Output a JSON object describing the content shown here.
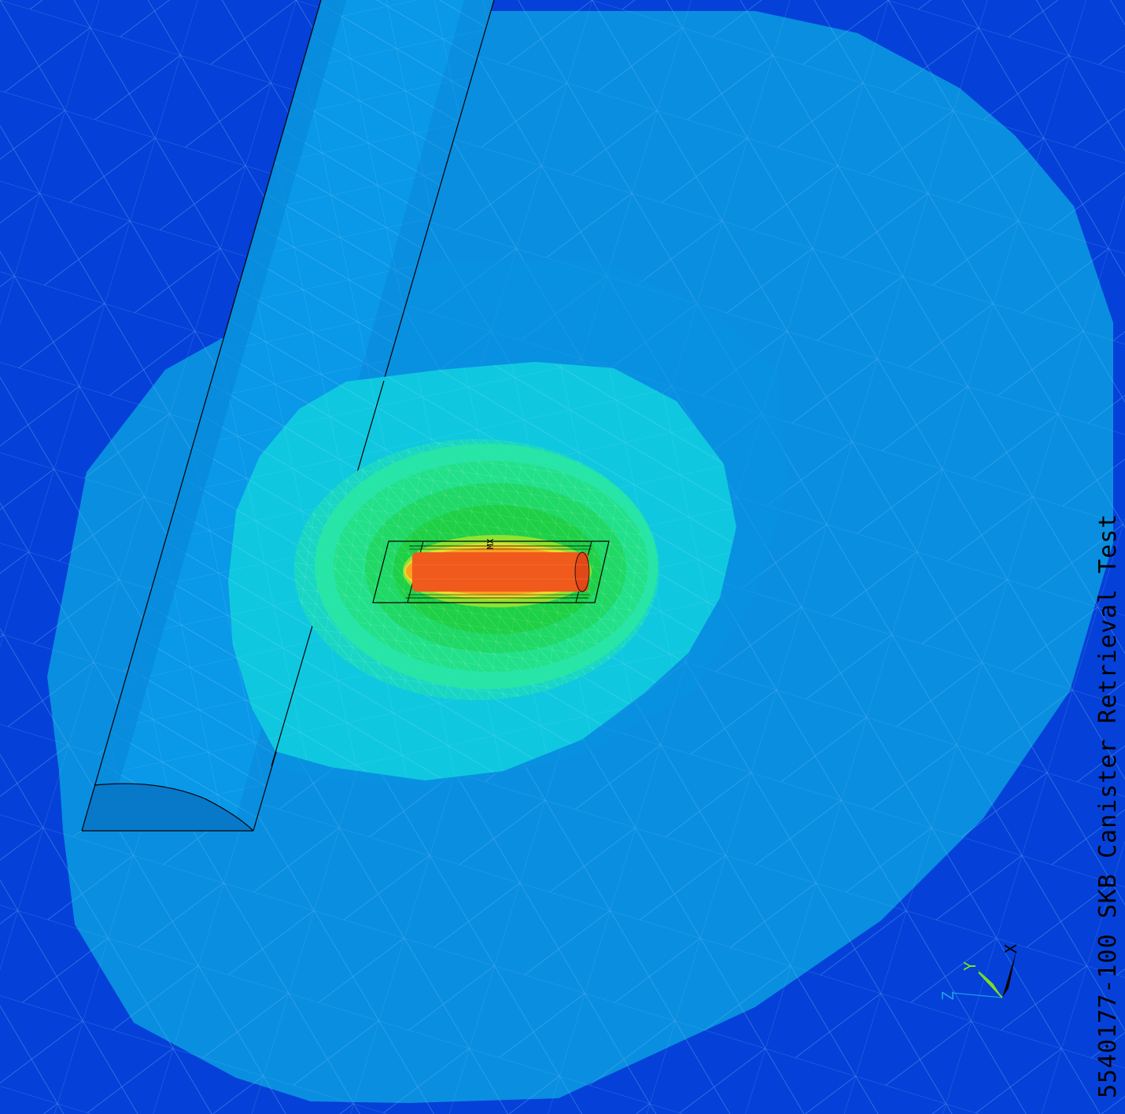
{
  "plot": {
    "title": "5540177-100 SKB Canister Retrieval Test",
    "max_marker": "MX"
  },
  "triad": {
    "x_label": "X",
    "y_label": "Y",
    "z_label": "Z"
  },
  "colors": {
    "background": "#0540d8",
    "outer_region": "#0a8ee0",
    "rock_mid": "#0b9be4",
    "cyan_band": "#0fc8e0",
    "teal_band": "#18d8c0",
    "light_green": "#2ce890",
    "green": "#22d63c",
    "yellow_green": "#9ee030",
    "yellow": "#e8e030",
    "orange": "#ff7a1a",
    "red_orange": "#f05018",
    "tunnel": "#0a98e8",
    "edge": "#000000"
  }
}
